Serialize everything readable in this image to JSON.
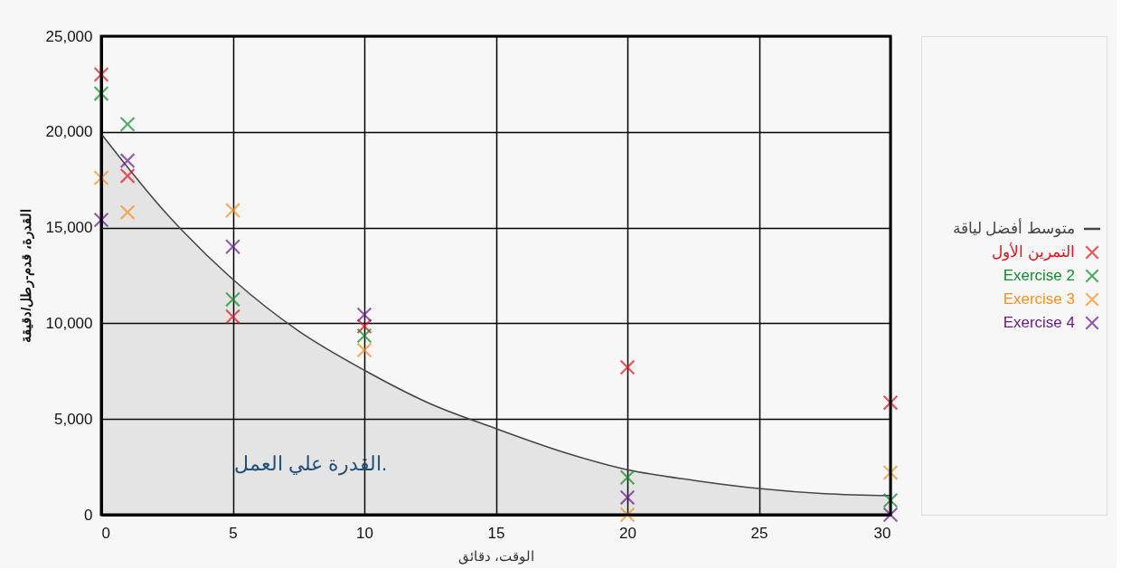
{
  "chart_data": {
    "type": "scatter",
    "xlabel": "الوقت، دقائق",
    "ylabel": "القدرة، قدم-رطل/دقيقة",
    "annotations": [
      "القدرة علي العمل."
    ],
    "xlim": [
      0,
      30
    ],
    "xticks": [
      0,
      5,
      10,
      15,
      20,
      25,
      30
    ],
    "ylim": [
      0,
      25000
    ],
    "yticks": [
      0,
      {
        "value": 5000,
        "label": "5,000"
      },
      {
        "value": 10000,
        "label": "10,000"
      },
      {
        "value": 15000,
        "label": "15,000"
      },
      {
        "value": 20000,
        "label": "20,000"
      },
      {
        "value": 25000,
        "label": "25,000"
      }
    ],
    "grid": true,
    "legend": "right",
    "marker": "cross",
    "series": [
      {
        "name": "متوسط أفضل لياقة",
        "type": "area",
        "marker": "none",
        "color": "#444444",
        "x": [
          0,
          2.5,
          5,
          7.5,
          10,
          12.5,
          15,
          17.5,
          20,
          22.5,
          25,
          27.5,
          30
        ],
        "values": [
          19900,
          15700,
          12300,
          9600,
          7550,
          5800,
          4500,
          3300,
          2350,
          1800,
          1370,
          1100,
          1000
        ]
      },
      {
        "name": "التمرين الأول",
        "color": "#e8101e",
        "x": [
          0,
          1,
          5,
          10,
          20,
          30
        ],
        "values": [
          23000,
          17700,
          10350,
          9850,
          7700,
          5850
        ]
      },
      {
        "name": "Exercise 2",
        "color": "#128c2a",
        "x": [
          0,
          1,
          5,
          10,
          20,
          30
        ],
        "values": [
          22000,
          20400,
          11250,
          9350,
          1950,
          750
        ]
      },
      {
        "name": "Exercise 3",
        "color": "#f7901e",
        "x": [
          0,
          1,
          5,
          10,
          20,
          30
        ],
        "values": [
          17600,
          15800,
          15900,
          8600,
          0,
          2200
        ]
      },
      {
        "name": "Exercise 4",
        "color": "#6a1b8a",
        "x": [
          0,
          1,
          5,
          10,
          20,
          30
        ],
        "values": [
          15400,
          18500,
          14000,
          10450,
          900,
          0
        ]
      }
    ]
  }
}
